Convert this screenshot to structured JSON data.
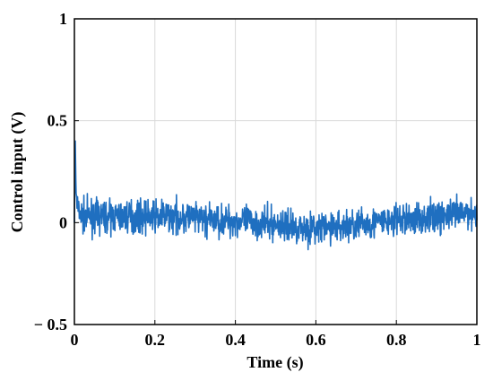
{
  "chart_data": {
    "type": "line",
    "title": "",
    "xlabel": "Time (s)",
    "ylabel": "Control input (V)",
    "xlim": [
      0,
      1
    ],
    "ylim": [
      -0.5,
      1
    ],
    "grid": true,
    "xticks": [
      0,
      0.2,
      0.4,
      0.6,
      0.8,
      1
    ],
    "xtick_labels": [
      "0",
      "0.2",
      "0.4",
      "0.6",
      "0.8",
      "1"
    ],
    "yticks": [
      -0.5,
      0,
      0.5,
      1
    ],
    "ytick_labels": [
      "− 0.5",
      "0",
      "0.5",
      "1"
    ],
    "line_color": "#1f6fc0",
    "series": [
      {
        "x": [
          0,
          0.002,
          0.004,
          0.01,
          0.02,
          0.05,
          0.1,
          0.15,
          0.2,
          0.25,
          0.3,
          0.35,
          0.4,
          0.45,
          0.5,
          0.55,
          0.6,
          0.65,
          0.7,
          0.75,
          0.8,
          0.85,
          0.9,
          0.95,
          1.0
        ],
        "y_mean": [
          0.0,
          0.42,
          0.15,
          0.05,
          0.03,
          0.03,
          0.03,
          0.03,
          0.03,
          0.03,
          0.02,
          0.01,
          0.01,
          0.0,
          -0.01,
          -0.02,
          -0.03,
          -0.02,
          -0.01,
          0.0,
          0.01,
          0.02,
          0.03,
          0.04,
          0.05
        ],
        "noise_amplitude": 0.08
      }
    ]
  }
}
